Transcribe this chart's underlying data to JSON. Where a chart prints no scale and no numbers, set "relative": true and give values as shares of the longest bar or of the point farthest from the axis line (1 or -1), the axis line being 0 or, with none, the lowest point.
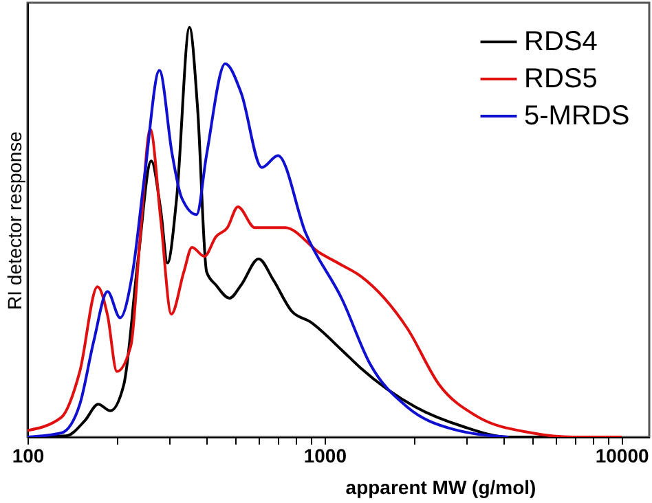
{
  "chart_data": {
    "type": "line",
    "relative": true,
    "xlabel": "apparent MW (g/mol)",
    "ylabel": "RI detector response",
    "log": "x",
    "xlim": [
      100,
      12400
    ],
    "xticks": [
      100,
      {
        "value": 200,
        "label": null
      },
      {
        "value": 300,
        "label": null
      },
      {
        "value": 400,
        "label": null
      },
      {
        "value": 500,
        "label": null
      },
      {
        "value": 600,
        "label": null
      },
      {
        "value": 700,
        "label": null
      },
      {
        "value": 800,
        "label": null
      },
      {
        "value": 900,
        "label": null
      },
      1000,
      {
        "value": 2000,
        "label": null
      },
      {
        "value": 3000,
        "label": null
      },
      {
        "value": 4000,
        "label": null
      },
      {
        "value": 5000,
        "label": null
      },
      {
        "value": 6000,
        "label": null
      },
      {
        "value": 7000,
        "label": null
      },
      {
        "value": 8000,
        "label": null
      },
      {
        "value": 9000,
        "label": null
      },
      10000
    ],
    "grid": false,
    "legend": "top right",
    "line_style": "solid",
    "marker": "none",
    "series": [
      {
        "name": "RDS4",
        "color": "#000000",
        "x": [
          100,
          135,
          156,
          173,
          190,
          211,
          235,
          261,
          281,
          296,
          318,
          351,
          374,
          401,
          431,
          479,
          524,
          600,
          673,
          776,
          896,
          1148,
          1321,
          2028,
          2917,
          4160,
          10000
        ],
        "values": [
          0,
          0.003,
          0.04,
          0.08,
          0.064,
          0.128,
          0.425,
          0.674,
          0.553,
          0.425,
          0.585,
          1.0,
          0.8,
          0.403,
          0.371,
          0.339,
          0.371,
          0.435,
          0.383,
          0.307,
          0.281,
          0.211,
          0.169,
          0.073,
          0.026,
          0.0,
          0.0
        ]
      },
      {
        "name": "RDS5",
        "color": "#e01010",
        "x": [
          100,
          130,
          150,
          172,
          186,
          200,
          223,
          239,
          259,
          281,
          305,
          336,
          358,
          394,
          431,
          471,
          511,
          583,
          736,
          962,
          1148,
          1321,
          1901,
          2432,
          3252,
          4990,
          6870,
          10000
        ],
        "values": [
          0.016,
          0.048,
          0.16,
          0.367,
          0.297,
          0.16,
          0.224,
          0.479,
          0.751,
          0.53,
          0.3,
          0.403,
          0.463,
          0.441,
          0.489,
          0.511,
          0.562,
          0.511,
          0.511,
          0.45,
          0.419,
          0.393,
          0.265,
          0.128,
          0.051,
          0.01,
          0.0,
          0.0
        ]
      },
      {
        "name": "5-MRDS",
        "color": "#1010d0",
        "x": [
          100,
          130,
          150,
          167,
          186,
          205,
          226,
          248,
          278,
          307,
          330,
          371,
          401,
          463,
          524,
          615,
          697,
          864,
          1148,
          1422,
          1901,
          2710,
          4160
        ],
        "values": [
          0,
          0.01,
          0.08,
          0.233,
          0.355,
          0.291,
          0.403,
          0.639,
          0.895,
          0.69,
          0.585,
          0.543,
          0.69,
          0.911,
          0.84,
          0.658,
          0.687,
          0.498,
          0.335,
          0.179,
          0.073,
          0.019,
          0.0
        ]
      }
    ]
  }
}
